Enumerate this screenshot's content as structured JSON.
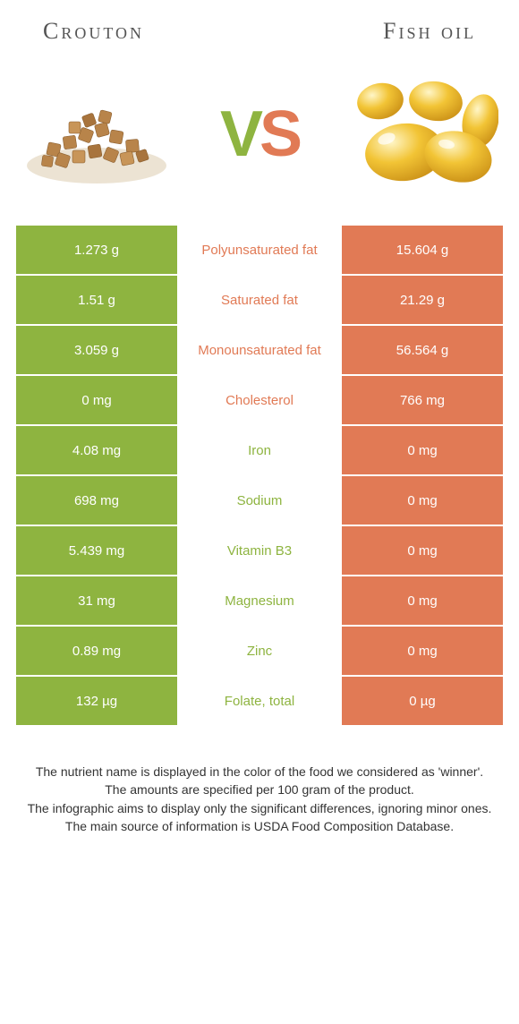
{
  "header": {
    "left_title": "Crouton",
    "right_title": "Fish oil"
  },
  "vs": {
    "v": "V",
    "s": "S"
  },
  "colors": {
    "left_bg": "#8eb440",
    "right_bg": "#e17a55",
    "left_text": "#8eb440",
    "right_text": "#e17a55"
  },
  "rows": [
    {
      "left": "1.273 g",
      "label": "Polyunsaturated fat",
      "right": "15.604 g",
      "winner": "right"
    },
    {
      "left": "1.51 g",
      "label": "Saturated fat",
      "right": "21.29 g",
      "winner": "right"
    },
    {
      "left": "3.059 g",
      "label": "Monounsaturated fat",
      "right": "56.564 g",
      "winner": "right"
    },
    {
      "left": "0 mg",
      "label": "Cholesterol",
      "right": "766 mg",
      "winner": "right"
    },
    {
      "left": "4.08 mg",
      "label": "Iron",
      "right": "0 mg",
      "winner": "left"
    },
    {
      "left": "698 mg",
      "label": "Sodium",
      "right": "0 mg",
      "winner": "left"
    },
    {
      "left": "5.439 mg",
      "label": "Vitamin B3",
      "right": "0 mg",
      "winner": "left"
    },
    {
      "left": "31 mg",
      "label": "Magnesium",
      "right": "0 mg",
      "winner": "left"
    },
    {
      "left": "0.89 mg",
      "label": "Zinc",
      "right": "0 mg",
      "winner": "left"
    },
    {
      "left": "132 µg",
      "label": "Folate, total",
      "right": "0 µg",
      "winner": "left"
    }
  ],
  "footer": {
    "line1": "The nutrient name is displayed in the color of the food we considered as 'winner'.",
    "line2": "The amounts are specified per 100 gram of the product.",
    "line3": "The infographic aims to display only the significant differences, ignoring minor ones.",
    "line4": "The main source of information is USDA Food Composition Database."
  }
}
